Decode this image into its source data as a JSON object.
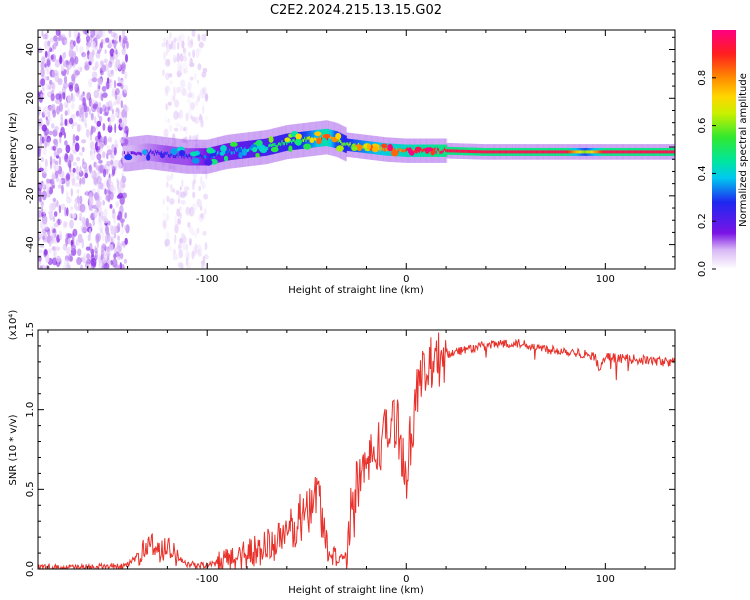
{
  "title": "C2E2.2024.215.13.15.G02",
  "chart_data": [
    {
      "type": "heatmap",
      "name": "spectrogram",
      "xlabel": "Height of straight line (km)",
      "ylabel": "Frequency (Hz)",
      "xlim": [
        -185,
        135
      ],
      "ylim": [
        -50,
        48
      ],
      "xticks": [
        -100,
        0,
        100
      ],
      "yticks": [
        -40,
        -20,
        0,
        20,
        40
      ],
      "ridge": {
        "x": [
          -140,
          -130,
          -120,
          -110,
          -100,
          -90,
          -80,
          -70,
          -60,
          -50,
          -45,
          -40,
          -35,
          -30,
          -20,
          -10,
          0,
          10,
          20,
          40,
          60,
          80,
          90,
          100,
          120,
          135
        ],
        "freq": [
          -3,
          -2,
          -3,
          -4,
          -4,
          -2,
          -1,
          0,
          2,
          3,
          3.5,
          4,
          3,
          1,
          0,
          -1,
          -1.5,
          -1.5,
          -1.5,
          -2,
          -2,
          -2,
          -2,
          -2,
          -2,
          -2
        ],
        "amplitude": [
          0.15,
          0.2,
          0.25,
          0.25,
          0.3,
          0.35,
          0.4,
          0.45,
          0.5,
          0.6,
          0.75,
          0.9,
          0.6,
          0.55,
          0.7,
          0.8,
          0.85,
          0.9,
          0.95,
          0.95,
          0.95,
          0.95,
          0.6,
          0.95,
          0.95,
          0.95
        ]
      },
      "noise_regions": [
        {
          "x_from": -185,
          "x_to": -140,
          "freq_from": -50,
          "freq_to": 48,
          "amplitude": 0.1
        },
        {
          "x_from": -122,
          "x_to": -100,
          "freq_from": -50,
          "freq_to": 48,
          "amplitude": 0.05
        }
      ],
      "colorbar": {
        "label": "Normalized spectral amplitude",
        "range": [
          0,
          1
        ],
        "ticks": [
          "0.0",
          "0.2",
          "0.4",
          "0.6",
          "0.8"
        ]
      }
    },
    {
      "type": "line",
      "name": "snr",
      "xlabel": "Height of straight line (km)",
      "ylabel": "SNR (10 * v/v)",
      "scale_label": "(x10⁴)",
      "color": "#e8312a",
      "xlim": [
        -185,
        135
      ],
      "ylim": [
        0,
        1.5
      ],
      "xticks": [
        -100,
        0,
        100
      ],
      "yticks": [
        "0.0",
        "0.5",
        "1.0",
        "1.5"
      ],
      "x": [
        -185,
        -160,
        -140,
        -132,
        -128,
        -124,
        -120,
        -115,
        -110,
        -100,
        -90,
        -80,
        -70,
        -60,
        -55,
        -50,
        -47,
        -45,
        -43,
        -40,
        -35,
        -30,
        -28,
        -25,
        -20,
        -15,
        -10,
        -5,
        0,
        5,
        10,
        20,
        30,
        40,
        50,
        60,
        70,
        80,
        90,
        95,
        97,
        100,
        110,
        120,
        130,
        135
      ],
      "y": [
        0.01,
        0.01,
        0.02,
        0.12,
        0.17,
        0.1,
        0.14,
        0.08,
        0.03,
        0.02,
        0.05,
        0.1,
        0.14,
        0.2,
        0.3,
        0.35,
        0.45,
        0.5,
        0.38,
        0.15,
        0.05,
        0.1,
        0.35,
        0.55,
        0.65,
        0.75,
        0.85,
        0.95,
        0.6,
        1.1,
        1.25,
        1.35,
        1.38,
        1.4,
        1.42,
        1.41,
        1.38,
        1.37,
        1.35,
        1.33,
        1.25,
        1.33,
        1.32,
        1.31,
        1.3,
        1.3
      ]
    }
  ]
}
